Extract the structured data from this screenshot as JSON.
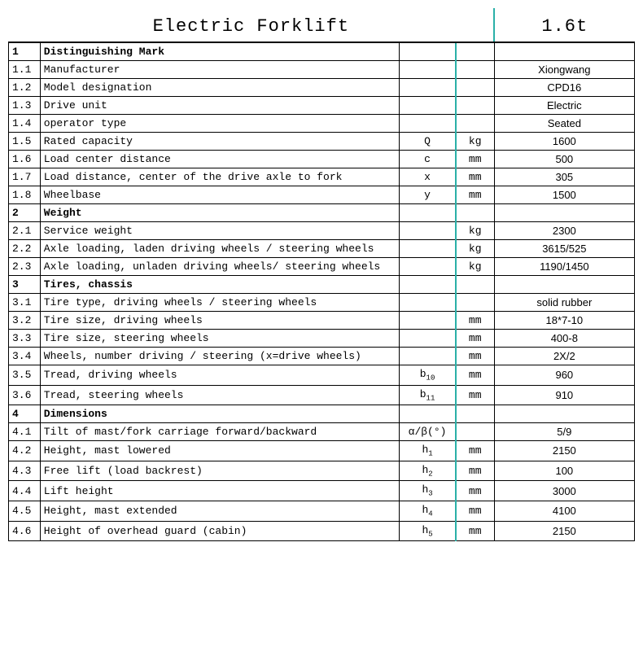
{
  "title": "Electric Forklift",
  "capacity_title": "1.6t",
  "colors": {
    "border": "#000000",
    "teal_border": "#2ab0a8",
    "background": "#ffffff",
    "text": "#000000"
  },
  "columns": {
    "num_width": 36,
    "desc_width": 410,
    "sym_width": 64,
    "unit_width": 44,
    "val_width": 160
  },
  "sections": [
    {
      "num": "1",
      "label": "Distinguishing Mark",
      "rows": [
        {
          "num": "1.1",
          "desc": "Manufacturer",
          "sym": "",
          "unit": "",
          "val": "Xiongwang"
        },
        {
          "num": "1.2",
          "desc": "Model designation",
          "sym": "",
          "unit": "",
          "val": "CPD16"
        },
        {
          "num": "1.3",
          "desc": "Drive unit",
          "sym": "",
          "unit": "",
          "val": "Electric"
        },
        {
          "num": "1.4",
          "desc": "operator type",
          "sym": "",
          "unit": "",
          "val": "Seated"
        },
        {
          "num": "1.5",
          "desc": "Rated capacity",
          "sym": "Q",
          "unit": "kg",
          "val": "1600"
        },
        {
          "num": "1.6",
          "desc": "Load center distance",
          "sym": "c",
          "unit": "mm",
          "val": "500"
        },
        {
          "num": "1.7",
          "desc": "Load distance, center of the drive axle to fork",
          "sym": "x",
          "unit": "mm",
          "val": "305"
        },
        {
          "num": "1.8",
          "desc": "Wheelbase",
          "sym": "y",
          "unit": "mm",
          "val": "1500"
        }
      ]
    },
    {
      "num": "2",
      "label": "Weight",
      "rows": [
        {
          "num": "2.1",
          "desc": "Service weight",
          "sym": "",
          "unit": "kg",
          "val": "2300"
        },
        {
          "num": "2.2",
          "desc": "Axle loading, laden driving wheels / steering wheels",
          "sym": "",
          "unit": "kg",
          "val": "3615/525"
        },
        {
          "num": "2.3",
          "desc": "Axle loading, unladen driving wheels/ steering wheels",
          "sym": "",
          "unit": "kg",
          "val": "1190/1450"
        }
      ]
    },
    {
      "num": "3",
      "label": "Tires, chassis",
      "rows": [
        {
          "num": "3.1",
          "desc": "Tire type, driving wheels / steering wheels",
          "sym": "",
          "unit": "",
          "val": "solid rubber"
        },
        {
          "num": "3.2",
          "desc": "Tire size, driving wheels",
          "sym": "",
          "unit": "mm",
          "val": "18*7-10"
        },
        {
          "num": "3.3",
          "desc": "Tire size, steering wheels",
          "sym": "",
          "unit": "mm",
          "val": "400-8"
        },
        {
          "num": "3.4",
          "desc": "Wheels, number driving / steering (x=drive wheels)",
          "sym": "",
          "unit": "mm",
          "val": "2X/2"
        },
        {
          "num": "3.5",
          "desc": "Tread, driving wheels",
          "sym": "b",
          "sub": "10",
          "unit": "mm",
          "val": "960"
        },
        {
          "num": "3.6",
          "desc": "Tread, steering wheels",
          "sym": "b",
          "sub": "11",
          "unit": "mm",
          "val": "910"
        }
      ]
    },
    {
      "num": "4",
      "label": "Dimensions",
      "rows": [
        {
          "num": "4.1",
          "desc": "Tilt of mast/fork carriage forward/backward",
          "sym": "α/β(°)",
          "unit": "",
          "val": "5/9"
        },
        {
          "num": "4.2",
          "desc": "Height, mast lowered",
          "sym": "h",
          "sub": "1",
          "unit": "mm",
          "val": "2150"
        },
        {
          "num": "4.3",
          "desc": "Free lift (load backrest)",
          "sym": "h",
          "sub": "2",
          "unit": "mm",
          "val": "100"
        },
        {
          "num": "4.4",
          "desc": "Lift height",
          "sym": "h",
          "sub": "3",
          "unit": "mm",
          "val": "3000"
        },
        {
          "num": "4.5",
          "desc": "Height, mast extended",
          "sym": "h",
          "sub": "4",
          "unit": "mm",
          "val": "4100"
        },
        {
          "num": "4.6",
          "desc": "Height of overhead guard (cabin)",
          "sym": "h",
          "sub": "5",
          "unit": "mm",
          "val": "2150"
        }
      ]
    }
  ]
}
